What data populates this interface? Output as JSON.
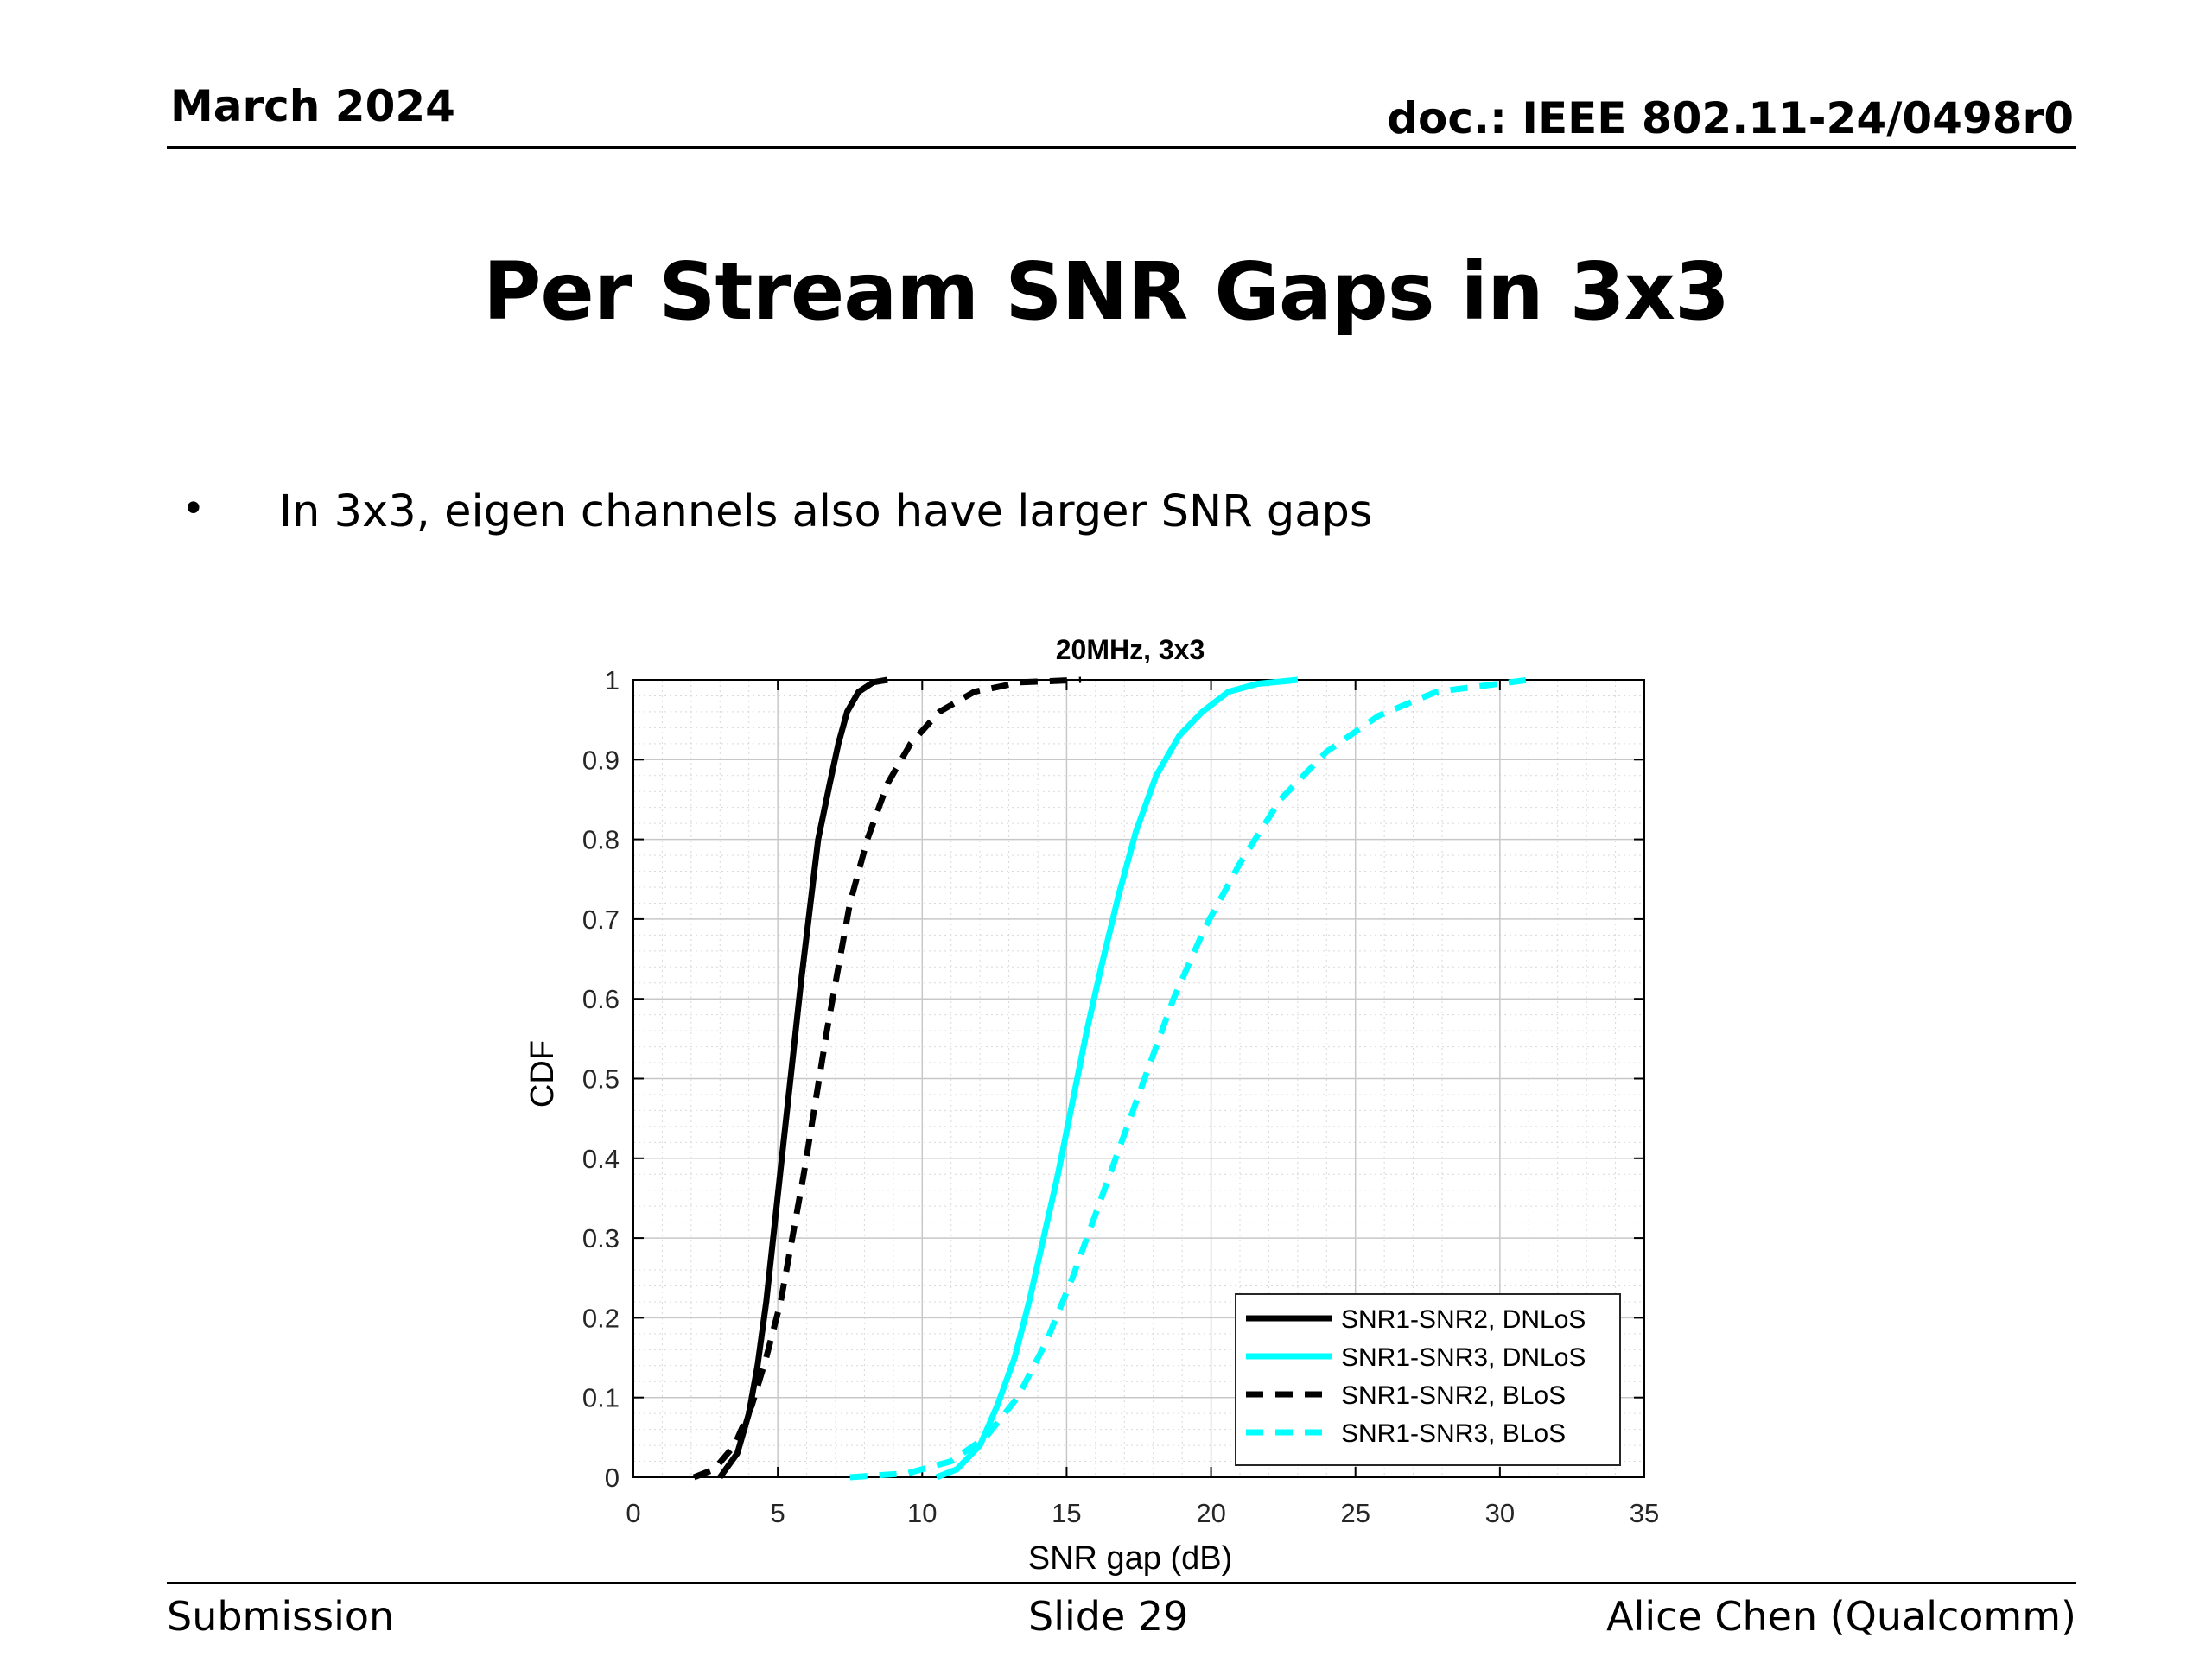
{
  "header": {
    "date": "March 2024",
    "doc": "doc.: IEEE 802.11-24/0498r0"
  },
  "slide": {
    "title": "Per Stream SNR Gaps in 3x3",
    "bullet_marker": "•",
    "bullet": "In 3x3, eigen channels also have larger SNR gaps"
  },
  "footer": {
    "left": "Submission",
    "center": "Slide 29",
    "right": "Alice Chen (Qualcomm)"
  },
  "chart_data": {
    "type": "line",
    "title": "20MHz, 3x3",
    "xlabel": "SNR gap (dB)",
    "ylabel": "CDF",
    "xlim": [
      0,
      35
    ],
    "ylim": [
      0,
      1
    ],
    "xticks": [
      0,
      5,
      10,
      15,
      20,
      25,
      30,
      35
    ],
    "yticks": [
      0,
      0.1,
      0.2,
      0.3,
      0.4,
      0.5,
      0.6,
      0.7,
      0.8,
      0.9,
      1
    ],
    "grid": true,
    "minor_grid": true,
    "legend_position": "bottom-right",
    "series": [
      {
        "name": "SNR1-SNR2, DNLoS",
        "color": "#000000",
        "dash": "solid",
        "x": [
          3.0,
          3.6,
          4.0,
          4.3,
          4.6,
          4.9,
          5.2,
          5.5,
          5.8,
          6.1,
          6.4,
          6.8,
          7.1,
          7.4,
          7.8,
          8.3,
          8.8
        ],
        "y": [
          0.0,
          0.03,
          0.08,
          0.14,
          0.22,
          0.32,
          0.42,
          0.52,
          0.62,
          0.71,
          0.8,
          0.87,
          0.92,
          0.96,
          0.985,
          0.997,
          1.0
        ]
      },
      {
        "name": "SNR1-SNR3, DNLoS",
        "color": "#00ffff",
        "dash": "solid",
        "x": [
          10.5,
          11.2,
          12.0,
          12.6,
          13.2,
          13.7,
          14.2,
          14.7,
          15.2,
          15.7,
          16.2,
          16.8,
          17.4,
          18.1,
          18.9,
          19.7,
          20.6,
          21.6,
          23.0
        ],
        "y": [
          0.0,
          0.01,
          0.04,
          0.09,
          0.15,
          0.22,
          0.3,
          0.38,
          0.47,
          0.56,
          0.64,
          0.73,
          0.81,
          0.88,
          0.93,
          0.96,
          0.985,
          0.995,
          1.0
        ]
      },
      {
        "name": "SNR1-SNR2, BLoS",
        "color": "#000000",
        "dash": "dashed",
        "x": [
          2.1,
          2.8,
          3.5,
          4.1,
          4.6,
          5.1,
          5.5,
          5.9,
          6.3,
          6.7,
          7.1,
          7.5,
          8.1,
          8.8,
          9.6,
          10.6,
          11.8,
          13.4,
          15.5
        ],
        "y": [
          0.0,
          0.01,
          0.04,
          0.09,
          0.15,
          0.22,
          0.3,
          0.38,
          0.47,
          0.56,
          0.64,
          0.72,
          0.8,
          0.87,
          0.92,
          0.96,
          0.985,
          0.997,
          1.0
        ]
      },
      {
        "name": "SNR1-SNR3, BLoS",
        "color": "#00ffff",
        "dash": "dashed",
        "x": [
          7.5,
          9.5,
          11.0,
          12.2,
          13.3,
          14.3,
          15.2,
          16.0,
          16.9,
          17.8,
          18.7,
          19.8,
          21.0,
          22.4,
          24.0,
          25.8,
          27.8,
          31.0
        ],
        "y": [
          0.0,
          0.005,
          0.02,
          0.05,
          0.1,
          0.17,
          0.25,
          0.33,
          0.42,
          0.51,
          0.6,
          0.69,
          0.77,
          0.85,
          0.91,
          0.955,
          0.985,
          1.0
        ]
      }
    ]
  }
}
